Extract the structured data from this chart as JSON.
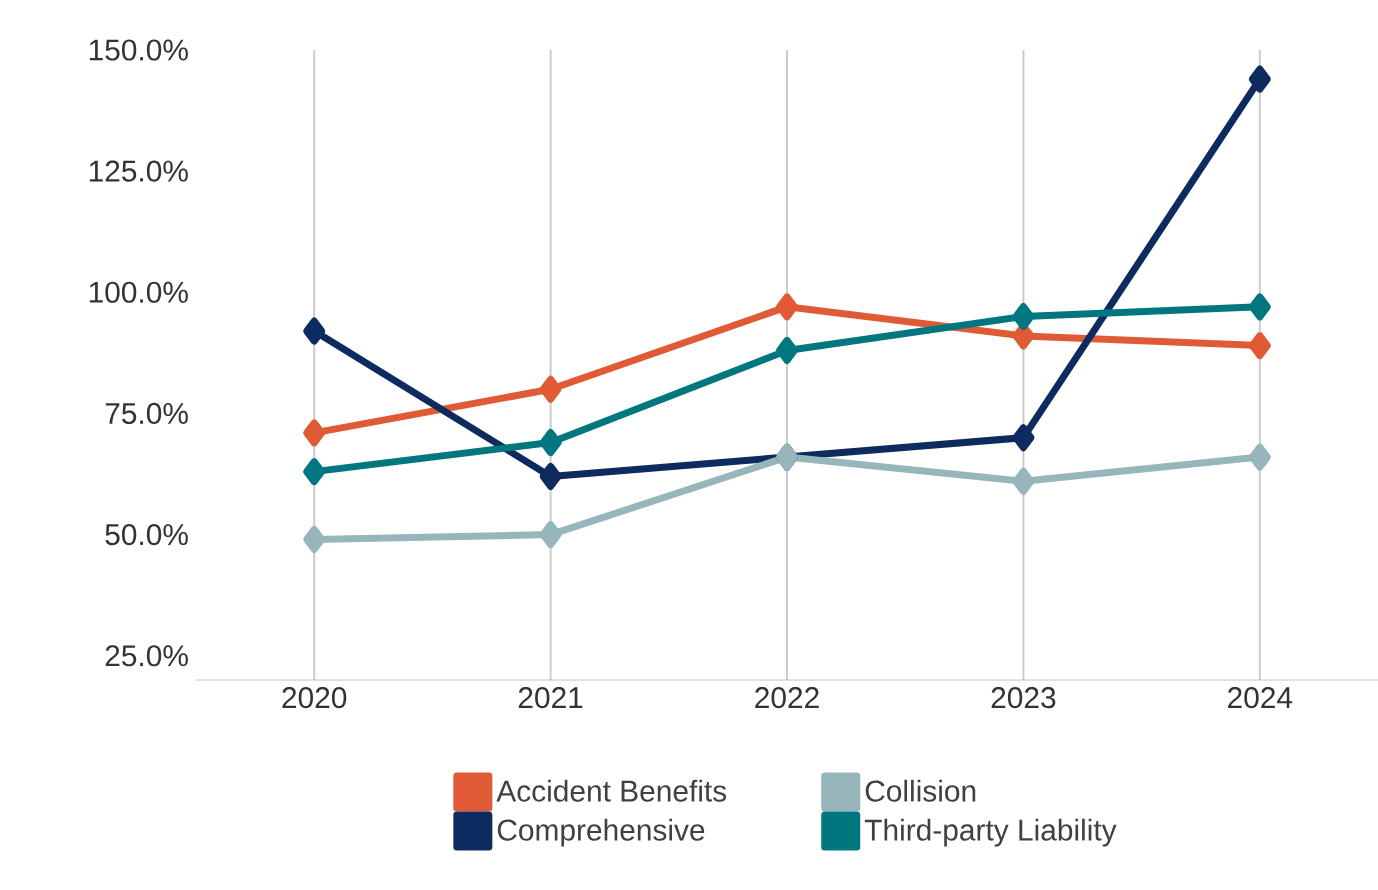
{
  "chart_data": {
    "type": "line",
    "categories": [
      "2020",
      "2021",
      "2022",
      "2023",
      "2024"
    ],
    "series": [
      {
        "name": "Accident Benefits",
        "color": "#e05a35",
        "values": [
          71,
          80,
          97,
          91,
          89
        ]
      },
      {
        "name": "Comprehensive",
        "color": "#0d2b5e",
        "values": [
          92,
          62,
          66,
          70,
          144
        ]
      },
      {
        "name": "Collision",
        "color": "#97b6bb",
        "values": [
          49,
          50,
          66,
          61,
          66
        ]
      },
      {
        "name": "Third-party Liability",
        "color": "#00767f",
        "values": [
          63,
          69,
          88,
          95,
          97
        ]
      }
    ],
    "ylim": [
      20,
      150
    ],
    "yticks": [
      {
        "value": 25,
        "label": "25.0%"
      },
      {
        "value": 50,
        "label": "50.0%"
      },
      {
        "value": 75,
        "label": "75.0%"
      },
      {
        "value": 100,
        "label": "100.0%"
      },
      {
        "value": 125,
        "label": "125.0%"
      },
      {
        "value": 150,
        "label": "150.0%"
      }
    ],
    "grid": "x",
    "legend": "bottom",
    "marker": "diamond",
    "line_style": "solid"
  }
}
